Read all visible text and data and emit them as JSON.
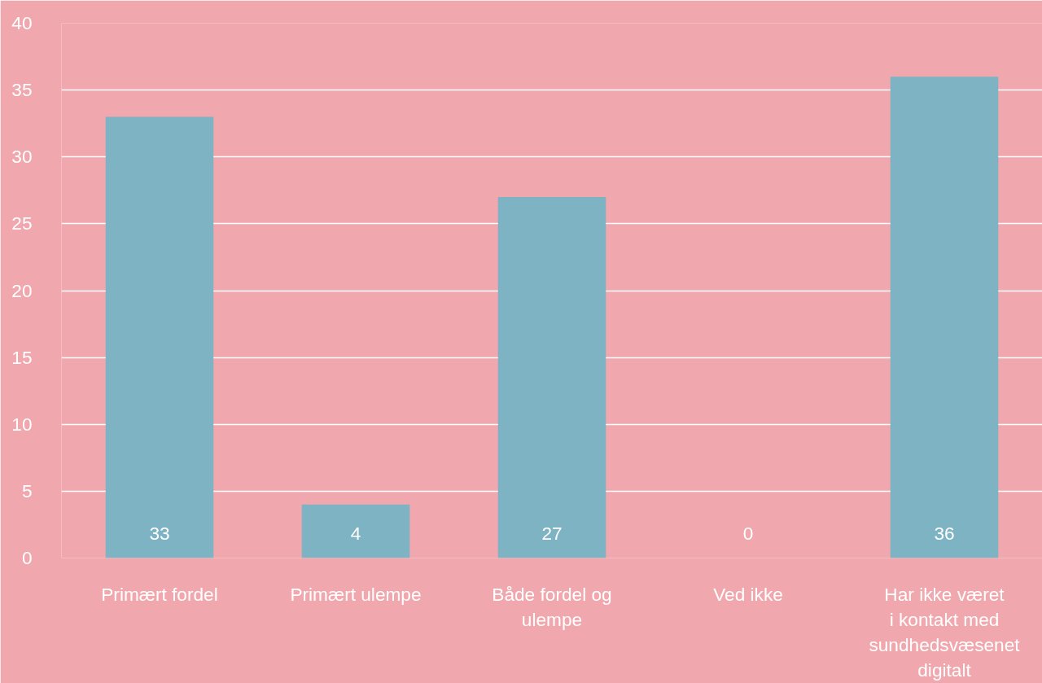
{
  "chart_data": {
    "type": "bar",
    "categories": [
      "Primært fordel",
      "Primært ulempe",
      "Både fordel og ulempe",
      "Ved ikke",
      "Har ikke været i kontakt med sundhedsvæsenet digitalt"
    ],
    "values": [
      33,
      4,
      27,
      0,
      36
    ],
    "color": "#7db3c3",
    "ylim": [
      0,
      40
    ],
    "yticks": [
      0,
      5,
      10,
      15,
      20,
      25,
      30,
      35,
      40
    ],
    "grid": "y",
    "data_labels": true
  }
}
